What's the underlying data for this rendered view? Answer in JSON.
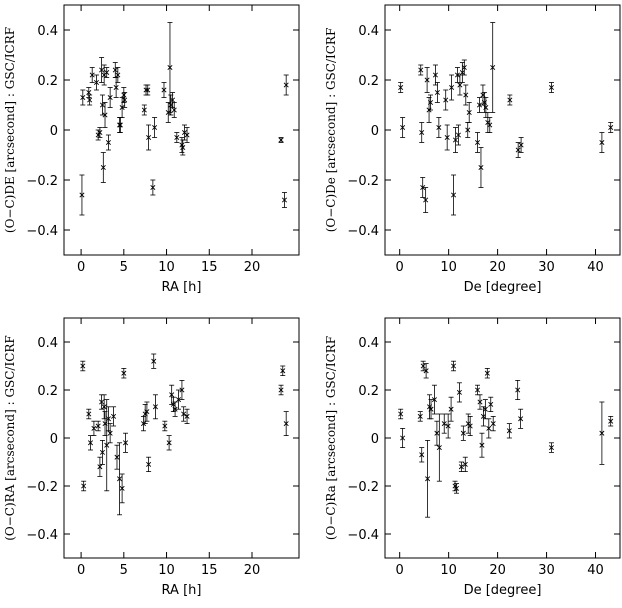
{
  "chart_data": [
    {
      "type": "scatter",
      "title": "",
      "xlabel": "RA [h]",
      "ylabel": "(O−C)DE  [arcsecond] : GSC/ICRF",
      "xlim": [
        -2,
        25.5
      ],
      "ylim": [
        -0.5,
        0.5
      ],
      "xticks": [
        0,
        5,
        10,
        15,
        20
      ],
      "yticks": [
        -0.4,
        -0.2,
        0,
        0.2,
        0.4
      ],
      "ytick_labels": [
        "−0.4",
        "−0.2",
        "0",
        "0.2",
        "0.4"
      ],
      "points": [
        {
          "x": 0.1,
          "y": -0.26,
          "err": 0.08
        },
        {
          "x": 0.2,
          "y": 0.13,
          "err": 0.03
        },
        {
          "x": 0.9,
          "y": 0.15,
          "err": 0.02
        },
        {
          "x": 1.0,
          "y": 0.12,
          "err": 0.02
        },
        {
          "x": 1.3,
          "y": 0.22,
          "err": 0.03
        },
        {
          "x": 1.8,
          "y": 0.19,
          "err": 0.03
        },
        {
          "x": 2.0,
          "y": -0.02,
          "err": 0.02
        },
        {
          "x": 2.2,
          "y": -0.01,
          "err": 0.02
        },
        {
          "x": 2.4,
          "y": 0.24,
          "err": 0.05
        },
        {
          "x": 2.5,
          "y": 0.1,
          "err": 0.04
        },
        {
          "x": 2.6,
          "y": -0.15,
          "err": 0.06
        },
        {
          "x": 2.7,
          "y": 0.22,
          "err": 0.04
        },
        {
          "x": 2.8,
          "y": 0.06,
          "err": 0.05
        },
        {
          "x": 3.0,
          "y": 0.23,
          "err": 0.02
        },
        {
          "x": 3.2,
          "y": -0.05,
          "err": 0.03
        },
        {
          "x": 3.4,
          "y": 0.13,
          "err": 0.04
        },
        {
          "x": 4.0,
          "y": 0.24,
          "err": 0.03
        },
        {
          "x": 4.1,
          "y": 0.17,
          "err": 0.04
        },
        {
          "x": 4.3,
          "y": 0.22,
          "err": 0.03
        },
        {
          "x": 4.5,
          "y": 0.02,
          "err": 0.03
        },
        {
          "x": 4.6,
          "y": 0.02,
          "err": 0.03
        },
        {
          "x": 4.8,
          "y": 0.09,
          "err": 0.04
        },
        {
          "x": 5.0,
          "y": 0.14,
          "err": 0.03
        },
        {
          "x": 5.1,
          "y": 0.12,
          "err": 0.03
        },
        {
          "x": 7.4,
          "y": 0.08,
          "err": 0.02
        },
        {
          "x": 7.6,
          "y": 0.16,
          "err": 0.02
        },
        {
          "x": 7.8,
          "y": 0.16,
          "err": 0.02
        },
        {
          "x": 7.9,
          "y": -0.03,
          "err": 0.05
        },
        {
          "x": 8.4,
          "y": -0.23,
          "err": 0.03
        },
        {
          "x": 8.6,
          "y": 0.01,
          "err": 0.04
        },
        {
          "x": 9.7,
          "y": 0.16,
          "err": 0.03
        },
        {
          "x": 10.2,
          "y": 0.07,
          "err": 0.04
        },
        {
          "x": 10.4,
          "y": 0.25,
          "err": 0.18
        },
        {
          "x": 10.5,
          "y": 0.1,
          "err": 0.04
        },
        {
          "x": 10.7,
          "y": 0.12,
          "err": 0.03
        },
        {
          "x": 10.9,
          "y": 0.08,
          "err": 0.03
        },
        {
          "x": 11.2,
          "y": -0.03,
          "err": 0.02
        },
        {
          "x": 11.8,
          "y": -0.06,
          "err": 0.03
        },
        {
          "x": 11.9,
          "y": -0.07,
          "err": 0.03
        },
        {
          "x": 12.1,
          "y": -0.01,
          "err": 0.03
        },
        {
          "x": 12.4,
          "y": -0.02,
          "err": 0.03
        },
        {
          "x": 23.4,
          "y": -0.04,
          "err": 0.01
        },
        {
          "x": 23.8,
          "y": -0.28,
          "err": 0.03
        },
        {
          "x": 24.0,
          "y": 0.18,
          "err": 0.04
        }
      ]
    },
    {
      "type": "scatter",
      "title": "",
      "xlabel": "De [degree]",
      "ylabel": "(O−C)De  [arcsecond] : GSC/ICRF",
      "xlim": [
        -3,
        45
      ],
      "ylim": [
        -0.5,
        0.5
      ],
      "xticks": [
        0,
        10,
        20,
        30,
        40
      ],
      "yticks": [
        -0.4,
        -0.2,
        0,
        0.2,
        0.4
      ],
      "ytick_labels": [
        "−0.4",
        "−0.2",
        "0",
        "0.2",
        "0.4"
      ],
      "points": [
        {
          "x": 0.2,
          "y": 0.17,
          "err": 0.02
        },
        {
          "x": 0.6,
          "y": 0.01,
          "err": 0.04
        },
        {
          "x": 4.3,
          "y": 0.24,
          "err": 0.02
        },
        {
          "x": 4.5,
          "y": -0.01,
          "err": 0.04
        },
        {
          "x": 4.7,
          "y": -0.23,
          "err": 0.04
        },
        {
          "x": 5.3,
          "y": -0.28,
          "err": 0.05
        },
        {
          "x": 5.6,
          "y": 0.2,
          "err": 0.05
        },
        {
          "x": 6.0,
          "y": 0.08,
          "err": 0.05
        },
        {
          "x": 6.3,
          "y": 0.11,
          "err": 0.03
        },
        {
          "x": 7.3,
          "y": 0.22,
          "err": 0.04
        },
        {
          "x": 7.7,
          "y": 0.15,
          "err": 0.04
        },
        {
          "x": 8.0,
          "y": 0.01,
          "err": 0.04
        },
        {
          "x": 9.4,
          "y": 0.12,
          "err": 0.04
        },
        {
          "x": 9.7,
          "y": -0.03,
          "err": 0.05
        },
        {
          "x": 10.6,
          "y": 0.17,
          "err": 0.05
        },
        {
          "x": 11.0,
          "y": -0.26,
          "err": 0.08
        },
        {
          "x": 11.4,
          "y": -0.04,
          "err": 0.05
        },
        {
          "x": 11.8,
          "y": 0.22,
          "err": 0.03
        },
        {
          "x": 12.0,
          "y": -0.02,
          "err": 0.04
        },
        {
          "x": 12.3,
          "y": 0.18,
          "err": 0.04
        },
        {
          "x": 12.8,
          "y": 0.23,
          "err": 0.04
        },
        {
          "x": 13.2,
          "y": 0.25,
          "err": 0.03
        },
        {
          "x": 13.5,
          "y": 0.14,
          "err": 0.04
        },
        {
          "x": 13.9,
          "y": 0.0,
          "err": 0.03
        },
        {
          "x": 14.2,
          "y": 0.07,
          "err": 0.04
        },
        {
          "x": 15.9,
          "y": -0.05,
          "err": 0.04
        },
        {
          "x": 16.3,
          "y": 0.1,
          "err": 0.03
        },
        {
          "x": 16.6,
          "y": -0.15,
          "err": 0.08
        },
        {
          "x": 17.0,
          "y": 0.14,
          "err": 0.04
        },
        {
          "x": 17.3,
          "y": 0.11,
          "err": 0.04
        },
        {
          "x": 17.6,
          "y": 0.09,
          "err": 0.04
        },
        {
          "x": 18.0,
          "y": 0.03,
          "err": 0.04
        },
        {
          "x": 18.4,
          "y": 0.02,
          "err": 0.03
        },
        {
          "x": 19.0,
          "y": 0.25,
          "err": 0.18
        },
        {
          "x": 22.5,
          "y": 0.12,
          "err": 0.02
        },
        {
          "x": 24.2,
          "y": -0.08,
          "err": 0.03
        },
        {
          "x": 24.8,
          "y": -0.06,
          "err": 0.03
        },
        {
          "x": 31.0,
          "y": 0.17,
          "err": 0.02
        },
        {
          "x": 41.3,
          "y": -0.05,
          "err": 0.04
        },
        {
          "x": 43.1,
          "y": 0.01,
          "err": 0.02
        }
      ]
    },
    {
      "type": "scatter",
      "title": "",
      "xlabel": "RA [h]",
      "ylabel": "(O−C)RA  [arcsecond] : GSC/ICRF",
      "xlim": [
        -2,
        25.5
      ],
      "ylim": [
        -0.5,
        0.5
      ],
      "xticks": [
        0,
        5,
        10,
        15,
        20
      ],
      "yticks": [
        -0.4,
        -0.2,
        0,
        0.2,
        0.4
      ],
      "ytick_labels": [
        "−0.4",
        "−0.2",
        "0",
        "0.2",
        "0.4"
      ],
      "points": [
        {
          "x": 0.2,
          "y": 0.3,
          "err": 0.02
        },
        {
          "x": 0.3,
          "y": -0.2,
          "err": 0.02
        },
        {
          "x": 0.9,
          "y": 0.1,
          "err": 0.02
        },
        {
          "x": 1.1,
          "y": -0.02,
          "err": 0.03
        },
        {
          "x": 1.5,
          "y": 0.04,
          "err": 0.03
        },
        {
          "x": 2.0,
          "y": 0.05,
          "err": 0.02
        },
        {
          "x": 2.2,
          "y": -0.12,
          "err": 0.04
        },
        {
          "x": 2.4,
          "y": 0.15,
          "err": 0.03
        },
        {
          "x": 2.5,
          "y": -0.06,
          "err": 0.05
        },
        {
          "x": 2.7,
          "y": 0.13,
          "err": 0.05
        },
        {
          "x": 2.8,
          "y": 0.06,
          "err": 0.05
        },
        {
          "x": 3.0,
          "y": -0.03,
          "err": 0.19
        },
        {
          "x": 3.2,
          "y": 0.08,
          "err": 0.05
        },
        {
          "x": 3.4,
          "y": 0.02,
          "err": 0.04
        },
        {
          "x": 3.8,
          "y": 0.09,
          "err": 0.04
        },
        {
          "x": 4.2,
          "y": -0.08,
          "err": 0.05
        },
        {
          "x": 4.5,
          "y": -0.17,
          "err": 0.15
        },
        {
          "x": 4.8,
          "y": -0.21,
          "err": 0.06
        },
        {
          "x": 5.0,
          "y": 0.27,
          "err": 0.02
        },
        {
          "x": 5.2,
          "y": -0.02,
          "err": 0.04
        },
        {
          "x": 7.3,
          "y": 0.06,
          "err": 0.03
        },
        {
          "x": 7.5,
          "y": 0.1,
          "err": 0.04
        },
        {
          "x": 7.7,
          "y": 0.11,
          "err": 0.04
        },
        {
          "x": 7.9,
          "y": -0.11,
          "err": 0.03
        },
        {
          "x": 8.5,
          "y": 0.32,
          "err": 0.03
        },
        {
          "x": 8.7,
          "y": 0.13,
          "err": 0.05
        },
        {
          "x": 9.8,
          "y": 0.05,
          "err": 0.02
        },
        {
          "x": 10.3,
          "y": -0.02,
          "err": 0.03
        },
        {
          "x": 10.6,
          "y": 0.18,
          "err": 0.04
        },
        {
          "x": 10.8,
          "y": 0.14,
          "err": 0.03
        },
        {
          "x": 11.0,
          "y": 0.12,
          "err": 0.03
        },
        {
          "x": 11.4,
          "y": 0.16,
          "err": 0.04
        },
        {
          "x": 11.8,
          "y": 0.2,
          "err": 0.04
        },
        {
          "x": 12.0,
          "y": 0.1,
          "err": 0.03
        },
        {
          "x": 12.4,
          "y": 0.09,
          "err": 0.03
        },
        {
          "x": 23.4,
          "y": 0.2,
          "err": 0.02
        },
        {
          "x": 23.6,
          "y": 0.28,
          "err": 0.02
        },
        {
          "x": 24.0,
          "y": 0.06,
          "err": 0.05
        }
      ]
    },
    {
      "type": "scatter",
      "title": "",
      "xlabel": "De [degree]",
      "ylabel": "(O−C)Ra  [arcsecond] : GSC/ICRF",
      "xlim": [
        -3,
        45
      ],
      "ylim": [
        -0.5,
        0.5
      ],
      "xticks": [
        0,
        10,
        20,
        30,
        40
      ],
      "yticks": [
        -0.4,
        -0.2,
        0,
        0.2,
        0.4
      ],
      "ytick_labels": [
        "−0.4",
        "−0.2",
        "0",
        "0.2",
        "0.4"
      ],
      "points": [
        {
          "x": 0.2,
          "y": 0.1,
          "err": 0.02
        },
        {
          "x": 0.6,
          "y": 0.0,
          "err": 0.04
        },
        {
          "x": 4.2,
          "y": 0.09,
          "err": 0.02
        },
        {
          "x": 4.5,
          "y": -0.07,
          "err": 0.03
        },
        {
          "x": 4.8,
          "y": 0.3,
          "err": 0.02
        },
        {
          "x": 5.4,
          "y": 0.28,
          "err": 0.03
        },
        {
          "x": 5.7,
          "y": -0.17,
          "err": 0.16
        },
        {
          "x": 6.1,
          "y": 0.13,
          "err": 0.05
        },
        {
          "x": 6.4,
          "y": 0.12,
          "err": 0.04
        },
        {
          "x": 7.1,
          "y": 0.16,
          "err": 0.06
        },
        {
          "x": 7.6,
          "y": 0.02,
          "err": 0.05
        },
        {
          "x": 8.1,
          "y": -0.04,
          "err": 0.14
        },
        {
          "x": 9.1,
          "y": 0.06,
          "err": 0.04
        },
        {
          "x": 9.9,
          "y": 0.05,
          "err": 0.05
        },
        {
          "x": 10.5,
          "y": 0.12,
          "err": 0.05
        },
        {
          "x": 11.0,
          "y": 0.3,
          "err": 0.02
        },
        {
          "x": 11.3,
          "y": -0.2,
          "err": 0.02
        },
        {
          "x": 11.6,
          "y": -0.21,
          "err": 0.02
        },
        {
          "x": 12.2,
          "y": 0.19,
          "err": 0.04
        },
        {
          "x": 12.6,
          "y": -0.12,
          "err": 0.02
        },
        {
          "x": 13.0,
          "y": 0.02,
          "err": 0.03
        },
        {
          "x": 13.4,
          "y": -0.11,
          "err": 0.03
        },
        {
          "x": 14.0,
          "y": 0.06,
          "err": 0.04
        },
        {
          "x": 14.4,
          "y": 0.05,
          "err": 0.04
        },
        {
          "x": 15.9,
          "y": 0.2,
          "err": 0.02
        },
        {
          "x": 16.4,
          "y": 0.15,
          "err": 0.03
        },
        {
          "x": 16.8,
          "y": -0.03,
          "err": 0.05
        },
        {
          "x": 17.1,
          "y": 0.09,
          "err": 0.04
        },
        {
          "x": 17.5,
          "y": 0.12,
          "err": 0.04
        },
        {
          "x": 17.9,
          "y": 0.27,
          "err": 0.02
        },
        {
          "x": 18.2,
          "y": 0.04,
          "err": 0.04
        },
        {
          "x": 18.6,
          "y": 0.14,
          "err": 0.03
        },
        {
          "x": 19.1,
          "y": 0.06,
          "err": 0.03
        },
        {
          "x": 22.4,
          "y": 0.03,
          "err": 0.03
        },
        {
          "x": 24.1,
          "y": 0.2,
          "err": 0.04
        },
        {
          "x": 24.7,
          "y": 0.08,
          "err": 0.04
        },
        {
          "x": 31.0,
          "y": -0.04,
          "err": 0.02
        },
        {
          "x": 41.3,
          "y": 0.02,
          "err": 0.13
        },
        {
          "x": 43.1,
          "y": 0.07,
          "err": 0.02
        }
      ]
    }
  ]
}
